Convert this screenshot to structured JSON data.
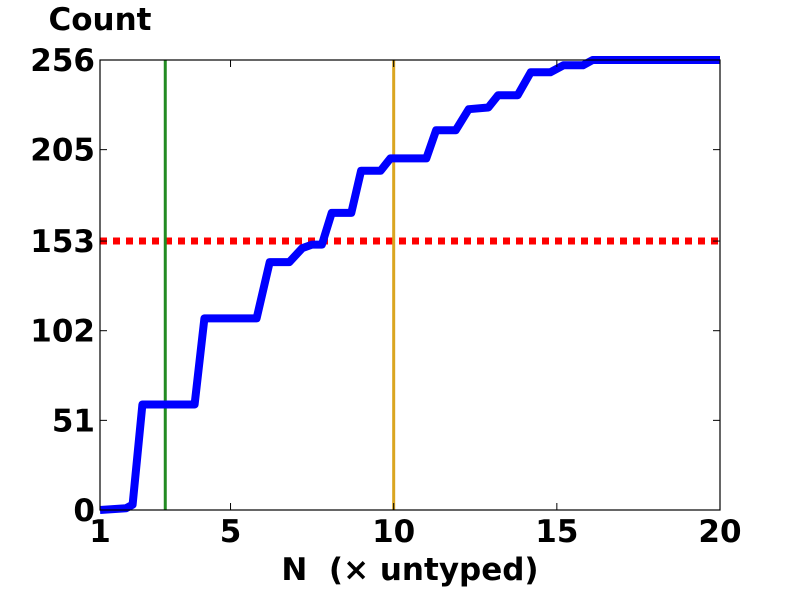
{
  "chart_data": {
    "type": "line",
    "title": "",
    "xlabel": "N  (× untyped)",
    "ylabel": "Count",
    "xlim": [
      1,
      20
    ],
    "ylim": [
      0,
      256
    ],
    "xticks": [
      1,
      5,
      10,
      15,
      20
    ],
    "yticks": [
      0,
      51,
      102,
      153,
      205,
      256
    ],
    "xtick_labels": [
      "1",
      "5",
      "10",
      "15",
      "20"
    ],
    "ytick_labels": [
      "0",
      "51",
      "102",
      "153",
      205,
      "256"
    ],
    "grid": false,
    "legend": "none",
    "series": [
      {
        "color": "#0000ff",
        "points": [
          [
            1.0,
            0
          ],
          [
            1.8,
            1
          ],
          [
            2.0,
            3
          ],
          [
            2.3,
            60
          ],
          [
            3.9,
            60
          ],
          [
            4.2,
            109
          ],
          [
            5.8,
            109
          ],
          [
            6.2,
            141
          ],
          [
            6.8,
            141
          ],
          [
            7.2,
            149
          ],
          [
            7.5,
            151
          ],
          [
            7.8,
            151
          ],
          [
            8.1,
            169
          ],
          [
            8.7,
            169
          ],
          [
            9.0,
            193
          ],
          [
            9.6,
            193
          ],
          [
            9.9,
            200
          ],
          [
            10.0,
            200
          ],
          [
            11.0,
            200
          ],
          [
            11.3,
            216
          ],
          [
            11.9,
            216
          ],
          [
            12.3,
            228
          ],
          [
            12.9,
            229
          ],
          [
            13.2,
            236
          ],
          [
            13.8,
            236
          ],
          [
            14.2,
            249
          ],
          [
            14.8,
            249
          ],
          [
            15.2,
            253
          ],
          [
            15.8,
            253
          ],
          [
            16.1,
            256
          ],
          [
            20.0,
            256
          ]
        ]
      }
    ],
    "reference_lines": [
      {
        "orientation": "horizontal",
        "value": 153,
        "color": "#ff0000",
        "style": "dotted"
      },
      {
        "orientation": "vertical",
        "value": 3.0,
        "color": "#228b22",
        "style": "solid"
      },
      {
        "orientation": "vertical",
        "value": 10.0,
        "color": "#daa520",
        "style": "solid"
      }
    ]
  }
}
